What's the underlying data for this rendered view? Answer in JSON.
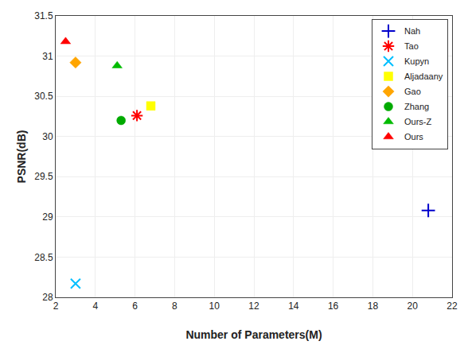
{
  "chart_data": {
    "type": "scatter",
    "xlabel": "Number of Parameters(M)",
    "ylabel": "PSNR(dB)",
    "xlim": [
      2,
      22
    ],
    "ylim": [
      28,
      31.5
    ],
    "xticks": [
      2,
      4,
      6,
      8,
      10,
      12,
      14,
      16,
      18,
      20,
      22
    ],
    "yticks": [
      28,
      28.5,
      29,
      29.5,
      30,
      30.5,
      31,
      31.5
    ],
    "grid": true,
    "legend": "upper right",
    "series": [
      {
        "name": "Nah",
        "x": [
          20.8
        ],
        "values": [
          29.08
        ],
        "marker": "cross",
        "color": "#0000CC"
      },
      {
        "name": "Tao",
        "x": [
          6.1
        ],
        "values": [
          30.26
        ],
        "marker": "star",
        "color": "#FF0000"
      },
      {
        "name": "Kupyn",
        "x": [
          3.0
        ],
        "values": [
          28.17
        ],
        "marker": "x",
        "color": "#00BFFF"
      },
      {
        "name": "Aljadaany",
        "x": [
          6.8
        ],
        "values": [
          30.38
        ],
        "marker": "square",
        "color": "#FFFF00"
      },
      {
        "name": "Gao",
        "x": [
          3.0
        ],
        "values": [
          30.92
        ],
        "marker": "diamond",
        "color": "#FFA500"
      },
      {
        "name": "Zhang",
        "x": [
          5.3
        ],
        "values": [
          30.2
        ],
        "marker": "circle",
        "color": "#00AA00"
      },
      {
        "name": "Ours-Z",
        "x": [
          5.1
        ],
        "values": [
          30.88
        ],
        "marker": "triangle-up",
        "color": "#00BB00"
      },
      {
        "name": "Ours",
        "x": [
          2.5
        ],
        "values": [
          31.18
        ],
        "marker": "triangle-up",
        "color": "#FF0000"
      }
    ]
  }
}
